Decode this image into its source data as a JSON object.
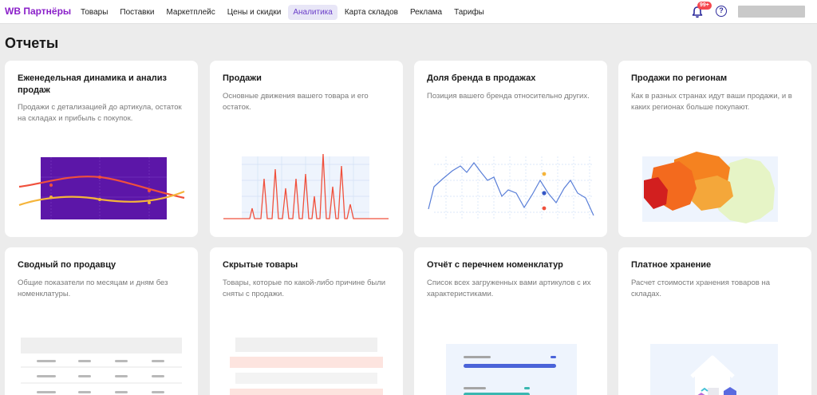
{
  "topbar": {
    "logo": "WB Партнёры",
    "nav": [
      "Товары",
      "Поставки",
      "Маркетплейс",
      "Цены и скидки",
      "Аналитика",
      "Карта складов",
      "Реклама",
      "Тарифы"
    ],
    "active_nav": "Аналитика",
    "notifications_badge": "99+",
    "help_glyph": "?",
    "icons": {
      "notifications": "bell-icon",
      "help": "help-icon"
    },
    "accent_color": "#8a1fc9"
  },
  "page": {
    "title": "Отчеты"
  },
  "cards": [
    {
      "title": "Еженедельная динамика и анализ продаж",
      "desc": "Продажи с детализацией до артикула, остаток на складах и прибыль с покупок."
    },
    {
      "title": "Продажи",
      "desc": "Основные движения вашего товара и его остаток."
    },
    {
      "title": "Доля бренда в продажах",
      "desc": "Позиция вашего бренда относительно других."
    },
    {
      "title": "Продажи по регионам",
      "desc": "Как в разных странах идут ваши продажи, и в каких регионах больше покупают."
    },
    {
      "title": "Сводный по продавцу",
      "desc": "Общие показатели по месяцам и дням без номенклатуры."
    },
    {
      "title": "Скрытые товары",
      "desc": "Товары, которые по какой-либо причине были сняты с продажи."
    },
    {
      "title": "Отчёт с перечнем номенклатур",
      "desc": "Список всех загруженных вами артикулов с их характеристиками."
    },
    {
      "title": "Платное хранение",
      "desc": "Расчет стоимости хранения товаров на складах."
    }
  ]
}
